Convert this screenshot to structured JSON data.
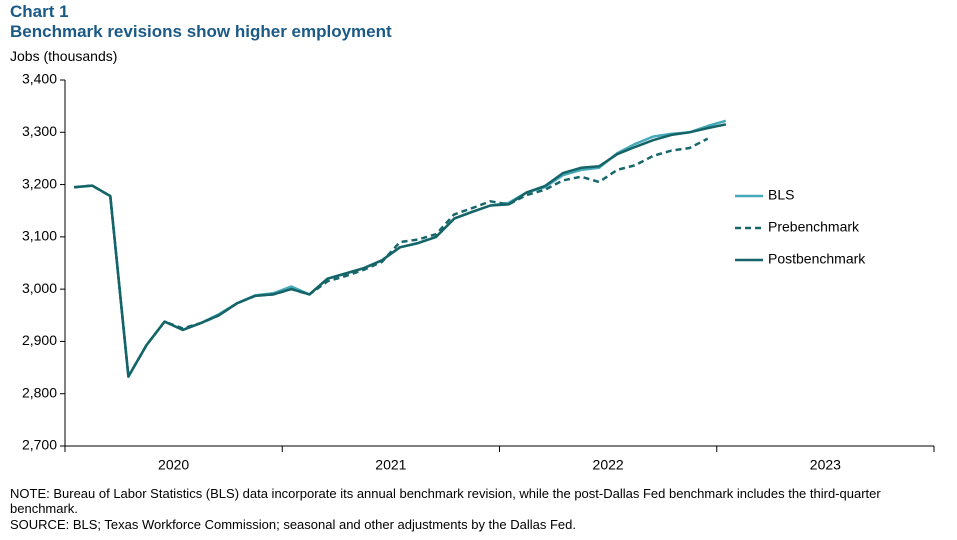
{
  "chart_data": {
    "type": "line",
    "title": "Chart 1",
    "subtitle": "Benchmark revisions show higher employment",
    "y_label": "Jobs (thousands)",
    "note": "NOTE: Bureau of Labor Statistics (BLS) data incorporate its annual benchmark revision, while the post-Dallas Fed benchmark includes the third-quarter benchmark.",
    "source": "SOURCE: BLS; Texas Workforce Commission; seasonal and other adjustments by the Dallas Fed.",
    "categories": [
      "2020",
      null,
      null,
      null,
      null,
      null,
      null,
      null,
      null,
      null,
      null,
      null,
      "2021",
      null,
      null,
      null,
      null,
      null,
      null,
      null,
      null,
      null,
      null,
      null,
      "2022",
      null,
      null,
      null,
      null,
      null,
      null,
      null,
      null,
      null,
      null,
      null,
      "2023",
      null,
      null,
      null,
      null,
      null,
      null,
      null,
      null,
      null,
      null,
      null
    ],
    "ylim": [
      2700,
      3400
    ],
    "yticks": [
      {
        "value": 2700,
        "label": "2,700"
      },
      {
        "value": 2800,
        "label": "2,800"
      },
      {
        "value": 2900,
        "label": "2,900"
      },
      {
        "value": 3000,
        "label": "3,000"
      },
      {
        "value": 3100,
        "label": "3,100"
      },
      {
        "value": 3200,
        "label": "3,200"
      },
      {
        "value": 3300,
        "label": "3,300"
      },
      {
        "value": 3400,
        "label": "3,400"
      }
    ],
    "legend": "right",
    "series": [
      {
        "name": "BLS",
        "color": "#45a9ba",
        "dash": false,
        "values": [
          3195,
          3198,
          3178,
          2833,
          2893,
          2938,
          2922,
          2935,
          2952,
          2973,
          2988,
          2992,
          3005,
          2990,
          3020,
          3030,
          3040,
          3055,
          3080,
          3088,
          3100,
          3135,
          3148,
          3160,
          3165,
          3185,
          3195,
          3218,
          3228,
          3232,
          3260,
          3278,
          3292,
          3297,
          3300,
          3312,
          3322,
          null,
          null,
          null,
          null,
          null,
          null,
          null,
          null,
          null,
          null,
          null
        ]
      },
      {
        "name": "Prebenchmark",
        "color": "#17676b",
        "dash": true,
        "values": [
          3195,
          3198,
          3178,
          2833,
          2893,
          2938,
          2925,
          2935,
          2950,
          2973,
          2987,
          2990,
          3000,
          2990,
          3015,
          3025,
          3037,
          3052,
          3090,
          3095,
          3105,
          3143,
          3155,
          3168,
          3162,
          3180,
          3190,
          3208,
          3215,
          3205,
          3228,
          3237,
          3255,
          3265,
          3270,
          3288,
          null,
          null,
          null,
          null,
          null,
          null,
          null,
          null,
          null,
          null,
          null,
          null
        ]
      },
      {
        "name": "Postbenchmark",
        "color": "#156468",
        "dash": false,
        "values": [
          3195,
          3198,
          3178,
          2833,
          2893,
          2938,
          2922,
          2935,
          2950,
          2973,
          2987,
          2990,
          3000,
          2990,
          3020,
          3030,
          3040,
          3055,
          3080,
          3088,
          3100,
          3135,
          3148,
          3160,
          3162,
          3185,
          3197,
          3222,
          3232,
          3235,
          3258,
          3272,
          3285,
          3295,
          3300,
          3308,
          3315,
          null,
          null,
          null,
          null,
          null,
          null,
          null,
          null,
          null,
          null,
          null
        ]
      }
    ]
  }
}
